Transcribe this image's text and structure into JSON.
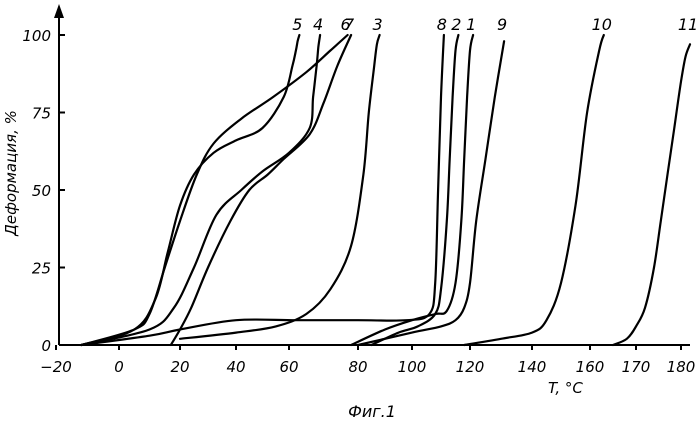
{
  "chart_data": {
    "type": "line",
    "ylabel": "Деформация, %",
    "xlabel": "T, °C",
    "caption": "Фиг.1",
    "xlim": [
      -20,
      180
    ],
    "ylim": [
      0,
      100
    ],
    "grid": false,
    "x_ticks": [
      -20,
      0,
      20,
      40,
      60,
      80,
      100,
      120,
      140,
      160,
      170,
      180
    ],
    "y_ticks": [
      0,
      25,
      50,
      75,
      100
    ],
    "series": [
      {
        "name": "1",
        "x": [
          78,
          90,
          100,
          108,
          112,
          115,
          117,
          118,
          119,
          120,
          121
        ],
        "y": [
          0,
          5,
          8,
          10,
          11,
          20,
          40,
          60,
          80,
          95,
          100
        ]
      },
      {
        "name": "2",
        "x": [
          85,
          95,
          102,
          108,
          110,
          112,
          113,
          114,
          115,
          116
        ],
        "y": [
          0,
          4,
          6,
          10,
          18,
          40,
          60,
          80,
          95,
          100
        ]
      },
      {
        "name": "3",
        "x": [
          20,
          40,
          55,
          65,
          72,
          78,
          82,
          84,
          86,
          87,
          88
        ],
        "y": [
          2,
          4,
          6,
          10,
          18,
          32,
          55,
          75,
          90,
          97,
          100
        ]
      },
      {
        "name": "4",
        "x": [
          -12,
          10,
          18,
          25,
          33,
          42,
          50,
          60,
          66,
          67,
          68,
          68.5,
          69
        ],
        "y": [
          0,
          5,
          12,
          25,
          42,
          50,
          56,
          62,
          70,
          80,
          90,
          96,
          100
        ]
      },
      {
        "name": "5",
        "x": [
          -12,
          5,
          12,
          16,
          20,
          25,
          32,
          40,
          50,
          58,
          61,
          62,
          62.5,
          63
        ],
        "y": [
          0,
          5,
          15,
          30,
          45,
          55,
          62,
          66,
          70,
          80,
          90,
          95,
          98,
          100
        ]
      },
      {
        "name": "6",
        "x": [
          -12,
          5,
          10,
          15,
          20,
          26,
          32,
          42,
          54,
          65,
          72,
          77
        ],
        "y": [
          0,
          5,
          10,
          25,
          40,
          55,
          65,
          73,
          80,
          88,
          95,
          100
        ]
      },
      {
        "name": "7",
        "x": [
          17,
          20,
          24,
          30,
          38,
          45,
          52,
          58,
          66,
          70,
          74,
          78
        ],
        "y": [
          0,
          5,
          12,
          25,
          40,
          50,
          55,
          60,
          68,
          78,
          90,
          100
        ]
      },
      {
        "name": "8",
        "x": [
          -12,
          10,
          20,
          40,
          62,
          80,
          98,
          106,
          108,
          109,
          110,
          111
        ],
        "y": [
          0,
          3,
          5,
          8,
          8,
          8,
          8,
          10,
          20,
          50,
          80,
          100
        ]
      },
      {
        "name": "9",
        "x": [
          80,
          100,
          110,
          115,
          118,
          120,
          122,
          125,
          128,
          131
        ],
        "y": [
          0,
          4,
          6,
          8,
          12,
          20,
          40,
          60,
          80,
          98
        ]
      },
      {
        "name": "10",
        "x": [
          118,
          130,
          140,
          145,
          150,
          155,
          159,
          162,
          163
        ],
        "y": [
          0,
          2,
          4,
          8,
          20,
          45,
          75,
          95,
          100
        ]
      },
      {
        "name": "11",
        "x": [
          165,
          168,
          170,
          172,
          174,
          175.5,
          177,
          178.5,
          180,
          181,
          182
        ],
        "y": [
          0,
          2,
          6,
          12,
          25,
          40,
          55,
          70,
          85,
          93,
          97
        ]
      }
    ]
  }
}
